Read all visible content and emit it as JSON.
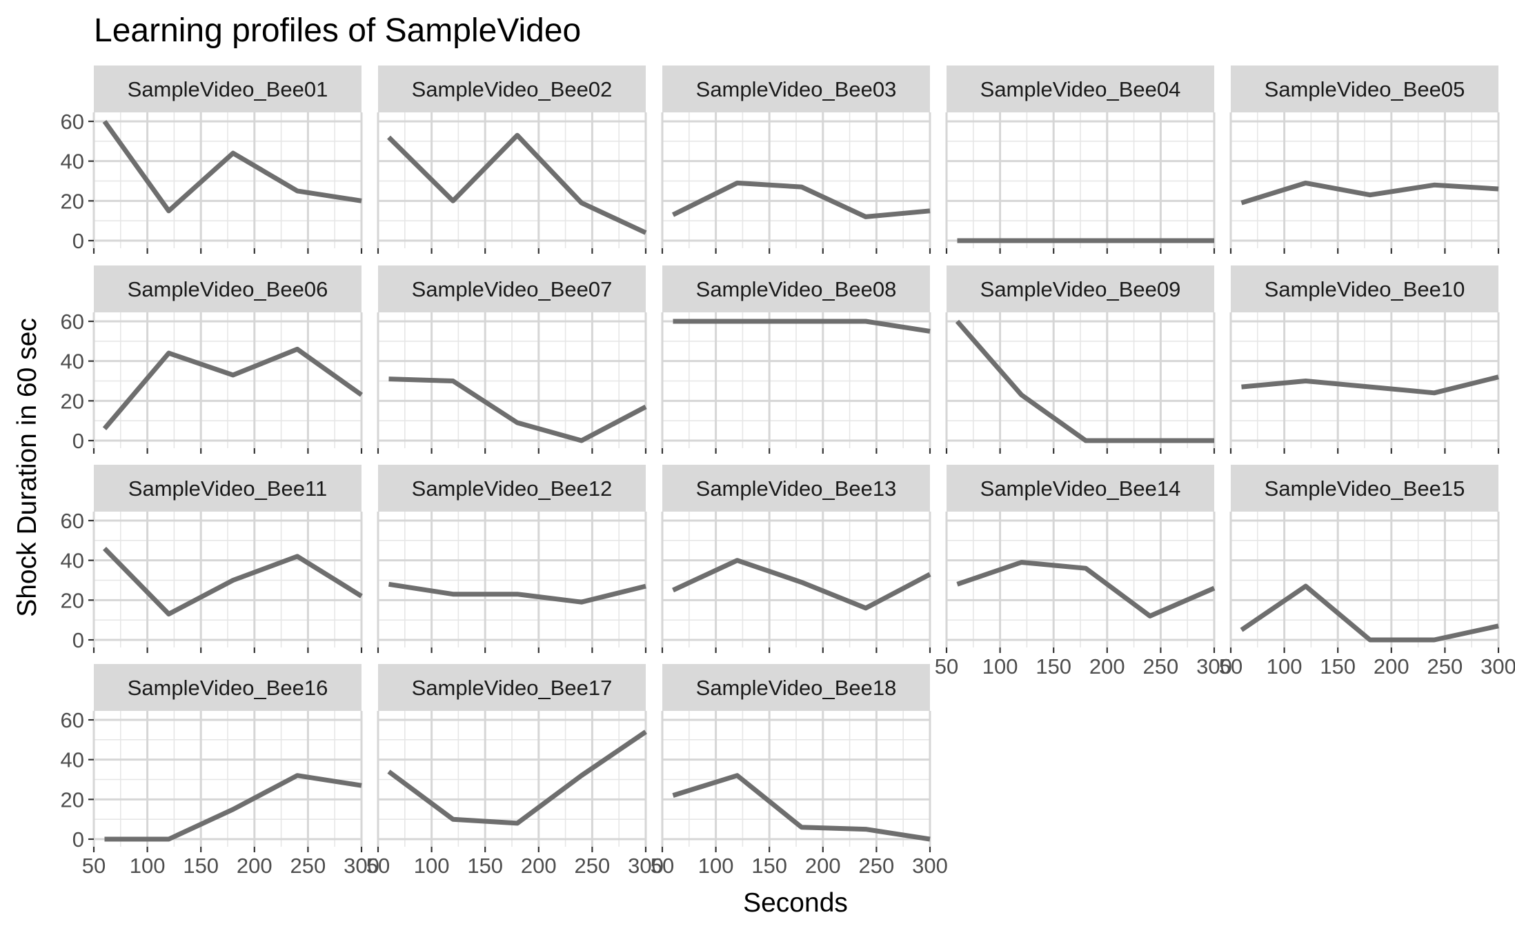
{
  "chart_data": {
    "type": "line",
    "title": "Learning profiles of SampleVideo",
    "xlabel": "Seconds",
    "ylabel": "Shock Duration in 60 sec",
    "xlim": [
      50,
      300
    ],
    "ylim": [
      0,
      60
    ],
    "x_ticks": [
      50,
      100,
      150,
      200,
      250,
      300
    ],
    "y_ticks": [
      0,
      20,
      40,
      60
    ],
    "grid": true,
    "line_color": "#6e6e6e",
    "x": [
      60,
      120,
      180,
      240,
      300
    ],
    "facets": [
      {
        "label": "SampleVideo_Bee01",
        "values": [
          60,
          15,
          44,
          25,
          20
        ]
      },
      {
        "label": "SampleVideo_Bee02",
        "values": [
          52,
          20,
          53,
          19,
          4
        ]
      },
      {
        "label": "SampleVideo_Bee03",
        "values": [
          13,
          29,
          27,
          12,
          15
        ]
      },
      {
        "label": "SampleVideo_Bee04",
        "values": [
          0,
          0,
          0,
          0,
          0
        ]
      },
      {
        "label": "SampleVideo_Bee05",
        "values": [
          19,
          29,
          23,
          28,
          26
        ]
      },
      {
        "label": "SampleVideo_Bee06",
        "values": [
          6,
          44,
          33,
          46,
          23
        ]
      },
      {
        "label": "SampleVideo_Bee07",
        "values": [
          31,
          30,
          9,
          0,
          17
        ]
      },
      {
        "label": "SampleVideo_Bee08",
        "values": [
          60,
          60,
          60,
          60,
          55
        ]
      },
      {
        "label": "SampleVideo_Bee09",
        "values": [
          60,
          23,
          0,
          0,
          0
        ]
      },
      {
        "label": "SampleVideo_Bee10",
        "values": [
          27,
          30,
          27,
          24,
          32
        ]
      },
      {
        "label": "SampleVideo_Bee11",
        "values": [
          46,
          13,
          30,
          42,
          22
        ]
      },
      {
        "label": "SampleVideo_Bee12",
        "values": [
          28,
          23,
          23,
          19,
          27
        ]
      },
      {
        "label": "SampleVideo_Bee13",
        "values": [
          25,
          40,
          29,
          16,
          33
        ]
      },
      {
        "label": "SampleVideo_Bee14",
        "values": [
          28,
          39,
          36,
          12,
          26
        ]
      },
      {
        "label": "SampleVideo_Bee15",
        "values": [
          5,
          27,
          0,
          0,
          7
        ]
      },
      {
        "label": "SampleVideo_Bee16",
        "values": [
          0,
          0,
          15,
          32,
          27
        ]
      },
      {
        "label": "SampleVideo_Bee17",
        "values": [
          34,
          10,
          8,
          32,
          54
        ]
      },
      {
        "label": "SampleVideo_Bee18",
        "values": [
          22,
          32,
          6,
          5,
          0
        ]
      }
    ]
  }
}
